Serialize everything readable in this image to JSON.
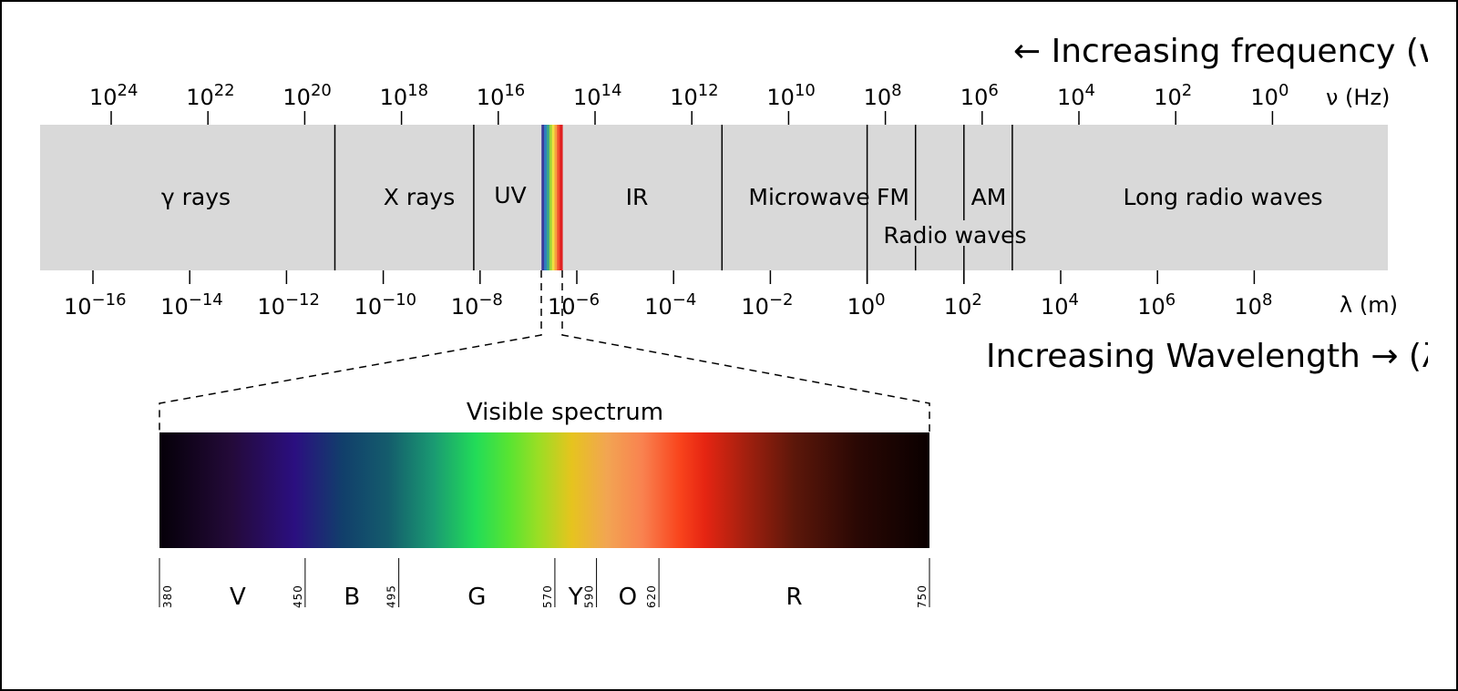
{
  "frequency_axis": {
    "unit_label": "ν (Hz)",
    "tick_exponents": [
      "24",
      "22",
      "20",
      "18",
      "16",
      "14",
      "12",
      "10",
      "8",
      "6",
      "4",
      "2",
      "0"
    ],
    "direction_label": "← Increasing frequency (ν)"
  },
  "wavelength_axis": {
    "unit_label": "λ (m)",
    "tick_exponents": [
      "−16",
      "−14",
      "−12",
      "−10",
      "−8",
      "−6",
      "−4",
      "−2",
      "0",
      "2",
      "4",
      "6",
      "8"
    ],
    "direction_label": "Increasing Wavelength → (λ)"
  },
  "band_colors": {
    "background": "#d9d9d9",
    "divider": "#000000"
  },
  "bands": {
    "gamma": "γ rays",
    "xray": "X rays",
    "uv": "UV",
    "ir": "IR",
    "microwave": "Microwave",
    "fm": "FM",
    "am": "AM",
    "long_radio": "Long radio waves",
    "radio": "Radio waves"
  },
  "band_boundaries_log10_m": [
    -11,
    -8.13,
    -3,
    0,
    1,
    2,
    3
  ],
  "visible_strip_log10_m": [
    -6.73,
    -6.3
  ],
  "visible": {
    "title": "Visible spectrum",
    "range_nm": [
      380,
      750
    ],
    "boundaries_nm": [
      "380",
      "450",
      "495",
      "570",
      "590",
      "620",
      "750"
    ],
    "colors": [
      {
        "name": "V"
      },
      {
        "name": "B"
      },
      {
        "name": "G"
      },
      {
        "name": "Y"
      },
      {
        "name": "O"
      },
      {
        "name": "R"
      }
    ],
    "gradient": [
      {
        "nm": 380,
        "color": "#050008"
      },
      {
        "nm": 415,
        "color": "#240a3a"
      },
      {
        "nm": 445,
        "color": "#2b0f80"
      },
      {
        "nm": 468,
        "color": "#113f6b"
      },
      {
        "nm": 490,
        "color": "#145c6c"
      },
      {
        "nm": 512,
        "color": "#1a9b72"
      },
      {
        "nm": 532,
        "color": "#22dc58"
      },
      {
        "nm": 548,
        "color": "#58e432"
      },
      {
        "nm": 562,
        "color": "#9ade24"
      },
      {
        "nm": 578,
        "color": "#e6c41e"
      },
      {
        "nm": 595,
        "color": "#f2a552"
      },
      {
        "nm": 612,
        "color": "#f98250"
      },
      {
        "nm": 630,
        "color": "#f9441c"
      },
      {
        "nm": 642,
        "color": "#e62512"
      },
      {
        "nm": 662,
        "color": "#a2200f"
      },
      {
        "nm": 685,
        "color": "#5c170a"
      },
      {
        "nm": 715,
        "color": "#2a0804"
      },
      {
        "nm": 750,
        "color": "#0a0000"
      }
    ]
  }
}
